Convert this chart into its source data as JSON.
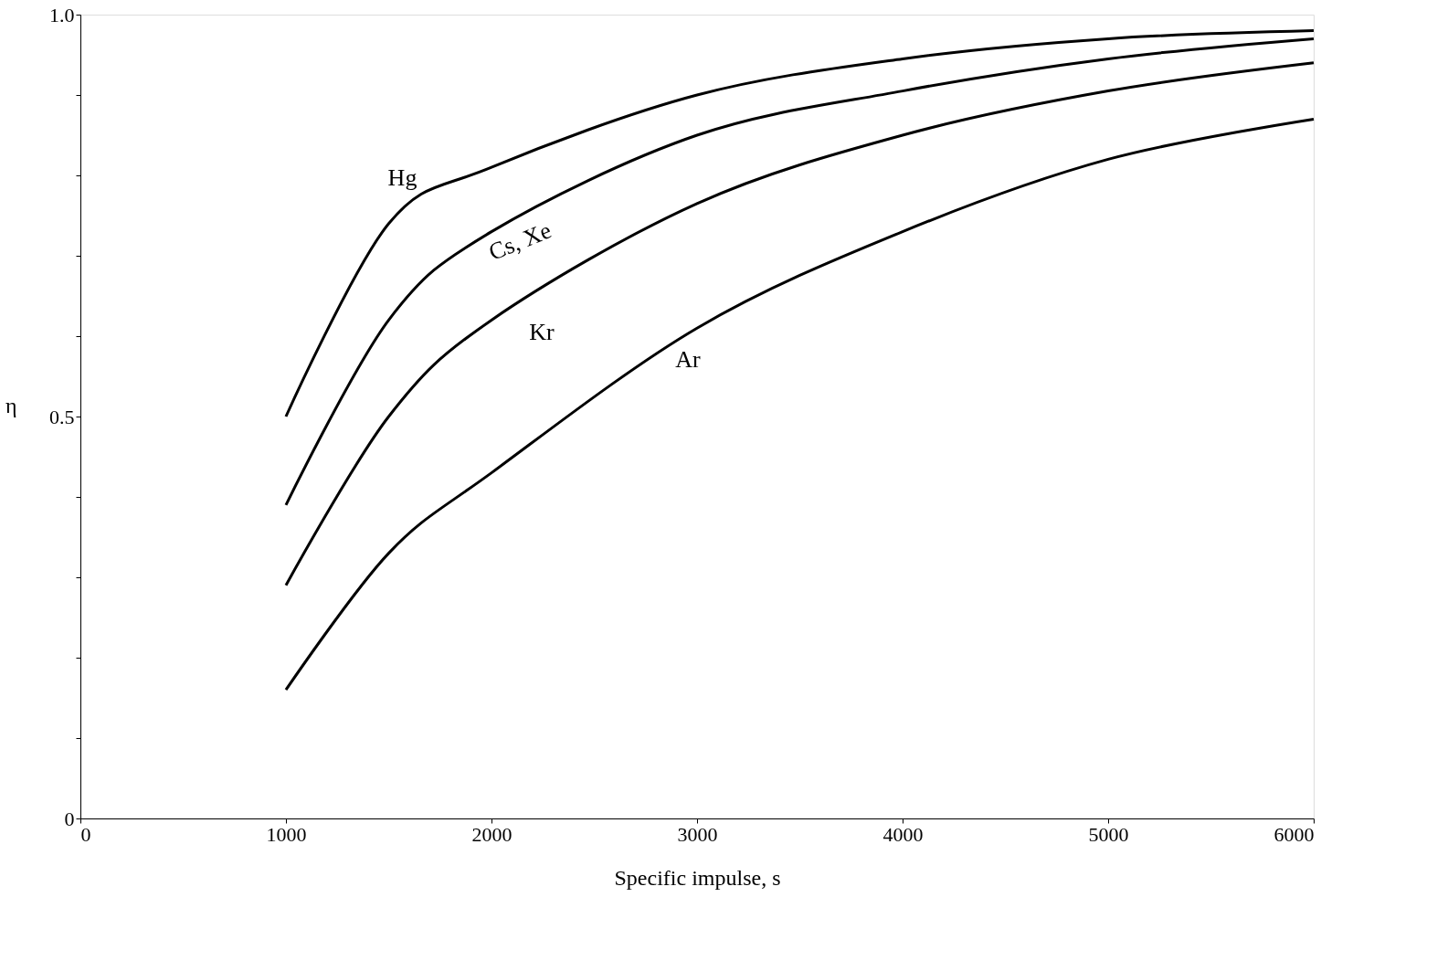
{
  "chart_data": {
    "type": "line",
    "xlabel": "Specific impulse, s",
    "ylabel": "η",
    "xlim": [
      0,
      6000
    ],
    "ylim": [
      0,
      1.0
    ],
    "xticks": [
      0,
      1000,
      2000,
      3000,
      4000,
      5000,
      6000
    ],
    "yticks": [
      {
        "value": 0,
        "label": "0"
      },
      {
        "value": 0.1,
        "label": null
      },
      {
        "value": 0.2,
        "label": null
      },
      {
        "value": 0.3,
        "label": null
      },
      {
        "value": 0.4,
        "label": null
      },
      {
        "value": 0.5,
        "label": "0.5"
      },
      {
        "value": 0.6,
        "label": null
      },
      {
        "value": 0.7,
        "label": null
      },
      {
        "value": 0.8,
        "label": null
      },
      {
        "value": 0.9,
        "label": null
      },
      {
        "value": 1.0,
        "label": "1.0"
      }
    ],
    "grid": false,
    "legend": false,
    "marker": "none",
    "line_style": "solid",
    "x": [
      1000,
      1500,
      2000,
      3000,
      4000,
      5000,
      6000
    ],
    "series": [
      {
        "name": "Hg",
        "color": "#000000",
        "values": [
          0.5,
          0.74,
          0.81,
          0.9,
          0.945,
          0.97,
          0.98
        ]
      },
      {
        "name": "Cs, Xe",
        "color": "#000000",
        "values": [
          0.39,
          0.62,
          0.73,
          0.85,
          0.905,
          0.945,
          0.97
        ]
      },
      {
        "name": "Kr",
        "color": "#000000",
        "values": [
          0.29,
          0.5,
          0.62,
          0.765,
          0.85,
          0.905,
          0.94
        ]
      },
      {
        "name": "Ar",
        "color": "#000000",
        "values": [
          0.16,
          0.33,
          0.43,
          0.61,
          0.73,
          0.82,
          0.87
        ]
      }
    ]
  }
}
